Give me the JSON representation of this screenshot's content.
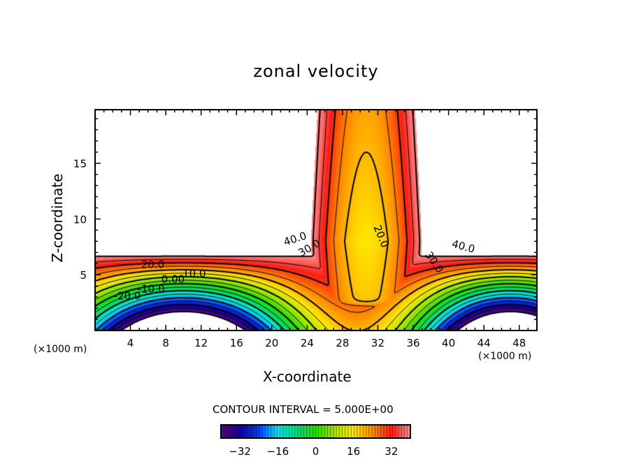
{
  "chart_data": {
    "type": "heatmap",
    "subtype": "filled-contour",
    "title": "zonal velocity",
    "xlabel": "X-coordinate",
    "ylabel": "Z-coordinate",
    "x_unit_left": "(×1000 m)",
    "x_unit_right": "(×1000 m)",
    "xlim": [
      0,
      50
    ],
    "ylim": [
      0,
      19.8
    ],
    "xticks": [
      4,
      8,
      12,
      16,
      20,
      24,
      28,
      32,
      36,
      40,
      44,
      48
    ],
    "xtick_labels": [
      "4",
      "8",
      "12",
      "16",
      "20",
      "24",
      "28",
      "32",
      "36",
      "40",
      "44",
      "48"
    ],
    "yticks": [
      5,
      10,
      15
    ],
    "ytick_labels": [
      "5",
      "10",
      "15"
    ],
    "contour_interval_text": "CONTOUR INTERVAL = 5.000E+00",
    "contour_interval": 5,
    "contour_levels": [
      -40,
      -35,
      -30,
      -25,
      -20,
      -15,
      -10,
      -5,
      0,
      5,
      10,
      15,
      20,
      25,
      30,
      35,
      40
    ],
    "contour_labels": [
      {
        "text": "40.0",
        "x": 21.5,
        "z": 7.6,
        "angle": -18
      },
      {
        "text": "30.0",
        "x": 23.3,
        "z": 6.6,
        "angle": -30
      },
      {
        "text": "20.0",
        "x": 31.5,
        "z": 9.3,
        "angle": 68
      },
      {
        "text": "30.0",
        "x": 37.3,
        "z": 6.8,
        "angle": 55
      },
      {
        "text": "40.0",
        "x": 40.3,
        "z": 7.5,
        "angle": 15
      },
      {
        "text": "20.0",
        "x": 5.2,
        "z": 5.6,
        "angle": 0
      },
      {
        "text": "10.0",
        "x": 9.9,
        "z": 4.8,
        "angle": 0
      },
      {
        "text": "0.00",
        "x": 7.5,
        "z": 4.3,
        "angle": 0
      },
      {
        "text": "-10.0",
        "x": 4.8,
        "z": 3.4,
        "angle": 0
      },
      {
        "text": "-20.0",
        "x": 2.1,
        "z": 2.8,
        "angle": 0
      }
    ],
    "colorbar": {
      "range": [
        -40,
        40
      ],
      "ticks": [
        -32,
        -16,
        0,
        16,
        32
      ],
      "tick_labels": [
        "−32",
        "−16",
        "0",
        "16",
        "32"
      ]
    }
  }
}
